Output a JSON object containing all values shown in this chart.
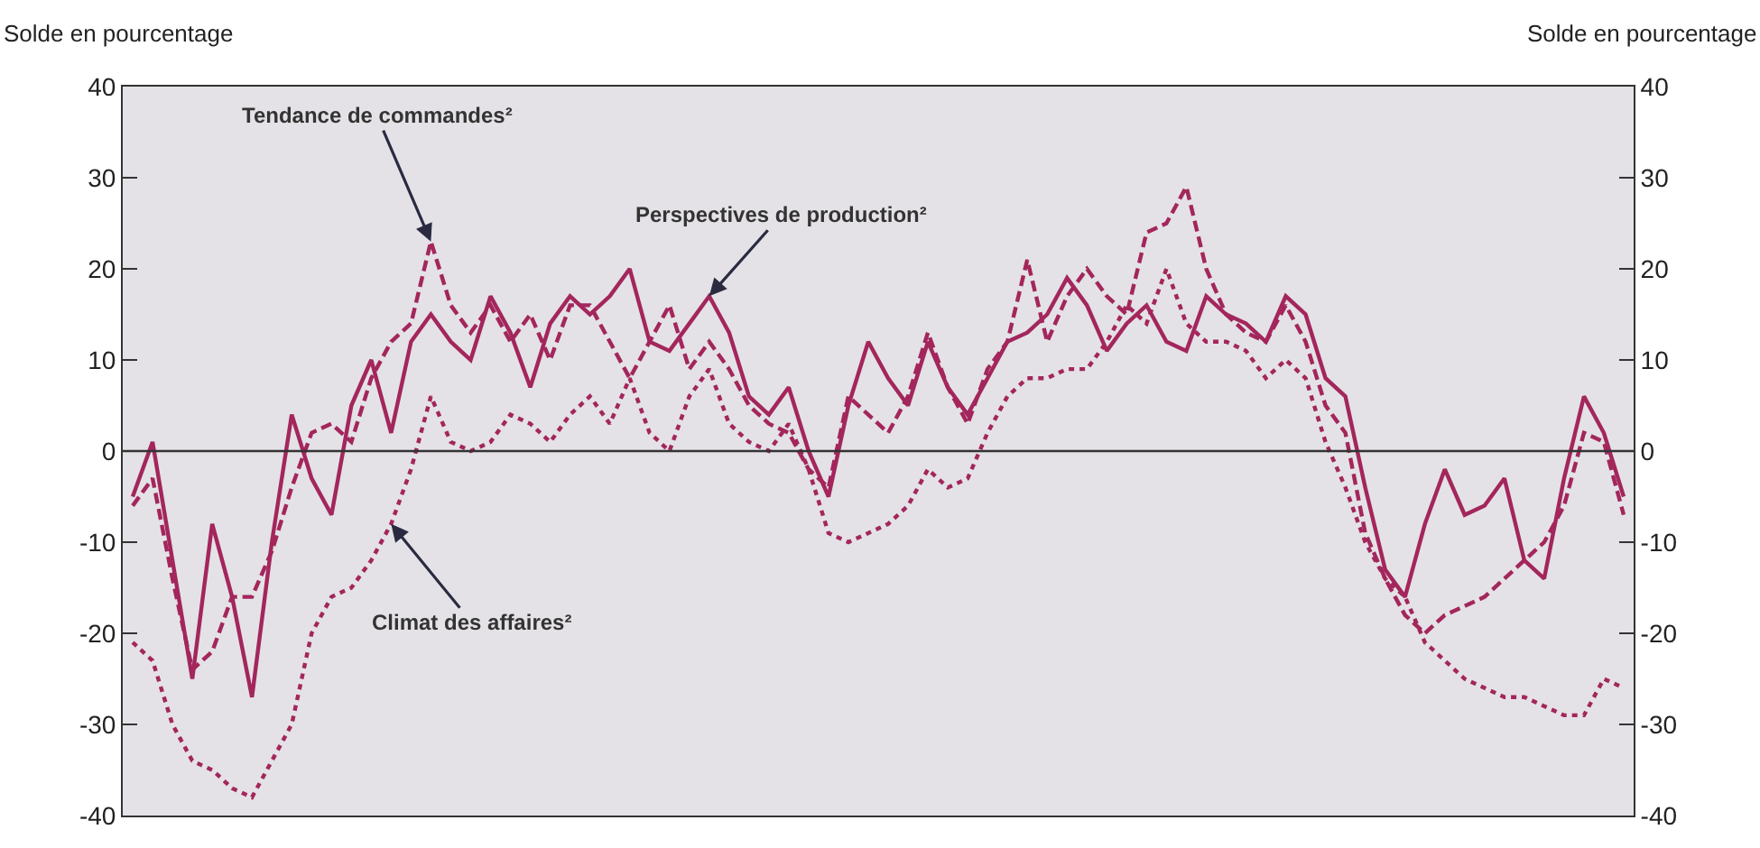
{
  "chart_data": {
    "type": "line",
    "ylabel": "Solde en pourcentage",
    "y2label": "Solde en pourcentage",
    "categories": [
      null,
      null,
      null,
      null,
      null,
      null,
      null,
      null,
      null,
      null,
      null,
      null,
      null,
      null,
      null,
      null,
      null,
      null,
      null,
      null,
      null,
      null,
      null,
      null,
      null,
      null,
      null,
      null,
      null,
      null,
      null,
      null,
      null,
      null,
      null,
      null,
      null,
      null,
      null,
      null,
      null,
      null,
      null,
      null,
      null,
      null,
      null,
      null,
      null,
      null,
      null,
      null,
      null,
      null,
      null,
      null,
      null,
      null,
      null,
      null,
      null,
      null,
      null,
      null,
      null,
      null,
      null,
      null,
      null,
      null,
      null,
      null,
      null,
      null,
      null,
      null
    ],
    "ylim": [
      -40,
      40
    ],
    "yticks": [
      -40,
      -30,
      -20,
      -10,
      0,
      10,
      20,
      30,
      40
    ],
    "y2lim": [
      -40,
      40
    ],
    "y2ticks": [
      -40,
      -30,
      -20,
      -10,
      0,
      10,
      20,
      30,
      40
    ],
    "grid": false,
    "legend": false,
    "marker": "none",
    "ref_lines": [
      {
        "axis": "y",
        "value": 0,
        "color": "#333333",
        "line_style": "solid"
      }
    ],
    "series": [
      {
        "name": "Perspectives de production²",
        "color": "#a3265c",
        "line_style": "solid",
        "values": [
          -5,
          1,
          -12,
          -25,
          -8,
          -16,
          -27,
          -10,
          4,
          -3,
          -7,
          5,
          10,
          2,
          12,
          15,
          12,
          10,
          17,
          13,
          7,
          14,
          17,
          15,
          17,
          20,
          12,
          11,
          14,
          17,
          13,
          6,
          4,
          7,
          0,
          -5,
          5,
          12,
          8,
          5,
          12,
          7,
          4,
          8,
          12,
          13,
          15,
          19,
          16,
          11,
          14,
          16,
          12,
          11,
          17,
          15,
          14,
          12,
          17,
          15,
          8,
          6,
          -4,
          -13,
          -16,
          -8,
          -2,
          -7,
          -6,
          -3,
          -12,
          -14,
          -3,
          6,
          2,
          -5
        ]
      },
      {
        "name": "Tendance de commandes²",
        "color": "#a3265c",
        "line_style": "dashed",
        "values": [
          -6,
          -3,
          -14,
          -24,
          -22,
          -16,
          -16,
          -11,
          -4,
          2,
          3,
          1,
          8,
          12,
          14,
          23,
          16,
          13,
          16,
          12,
          15,
          10,
          16,
          16,
          12,
          8,
          12,
          16,
          9,
          12,
          9,
          5,
          3,
          2,
          -2,
          -4,
          6,
          4,
          2,
          6,
          13,
          7,
          3,
          9,
          12,
          21,
          12,
          17,
          20,
          17,
          15,
          24,
          25,
          29,
          20,
          15,
          13,
          12,
          16,
          12,
          5,
          2,
          -9,
          -14,
          -18,
          -20,
          -18,
          -17,
          -16,
          -14,
          -12,
          -10,
          -6,
          2,
          1,
          -7
        ]
      },
      {
        "name": "Climat des affaires²",
        "color": "#a3265c",
        "line_style": "dotted",
        "values": [
          -21,
          -23,
          -30,
          -34,
          -35,
          -37,
          -38,
          -34,
          -30,
          -20,
          -16,
          -15,
          -12,
          -8,
          -2,
          6,
          1,
          0,
          1,
          4,
          3,
          1,
          4,
          6,
          3,
          8,
          2,
          0,
          6,
          9,
          3,
          1,
          0,
          3,
          -2,
          -9,
          -10,
          -9,
          -8,
          -6,
          -2,
          -4,
          -3,
          2,
          6,
          8,
          8,
          9,
          9,
          12,
          16,
          14,
          20,
          14,
          12,
          12,
          11,
          8,
          10,
          8,
          1,
          -4,
          -10,
          -14,
          -16,
          -21,
          -23,
          -25,
          -26,
          -27,
          -27,
          -28,
          -29,
          -29,
          -25,
          -26
        ]
      }
    ]
  }
}
